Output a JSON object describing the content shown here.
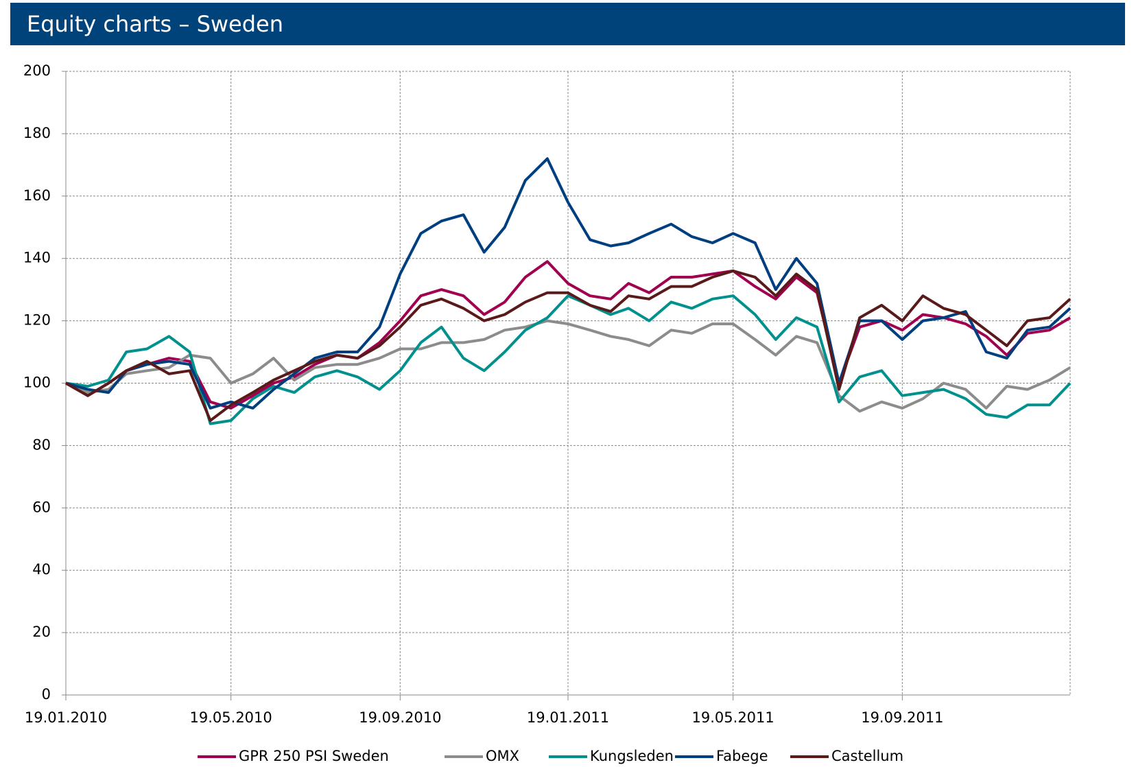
{
  "chart_data": {
    "type": "line",
    "title": "Equity charts – Sweden",
    "x": [
      "2010-01-19",
      "2010-02-04",
      "2010-02-19",
      "2010-03-04",
      "2010-03-19",
      "2010-04-04",
      "2010-04-19",
      "2010-05-04",
      "2010-05-19",
      "2010-06-04",
      "2010-06-19",
      "2010-07-04",
      "2010-07-19",
      "2010-08-04",
      "2010-08-19",
      "2010-09-04",
      "2010-09-19",
      "2010-10-04",
      "2010-10-19",
      "2010-11-04",
      "2010-11-19",
      "2010-12-04",
      "2010-12-19",
      "2011-01-04",
      "2011-01-19",
      "2011-02-04",
      "2011-02-19",
      "2011-03-04",
      "2011-03-19",
      "2011-04-04",
      "2011-04-19",
      "2011-05-04",
      "2011-05-19",
      "2011-06-04",
      "2011-06-19",
      "2011-07-04",
      "2011-07-19",
      "2011-08-04",
      "2011-08-19",
      "2011-09-04",
      "2011-09-19",
      "2011-10-04",
      "2011-10-19",
      "2011-11-04",
      "2011-11-19",
      "2011-12-04",
      "2011-12-19",
      "2012-01-04",
      "2012-01-19"
    ],
    "series": [
      {
        "name": "GPR 250 PSI Sweden",
        "color": "#a0004f",
        "values": [
          100,
          96,
          100,
          104,
          106,
          108,
          107,
          94,
          92,
          96,
          100,
          102,
          106,
          109,
          108,
          113,
          120,
          128,
          130,
          128,
          122,
          126,
          134,
          139,
          132,
          128,
          127,
          132,
          129,
          134,
          134,
          135,
          136,
          131,
          127,
          134,
          129,
          100,
          118,
          120,
          117,
          122,
          121,
          119,
          115,
          109,
          116,
          117,
          121
        ]
      },
      {
        "name": "OMX",
        "color": "#8c8c8c",
        "values": [
          100,
          97,
          98,
          103,
          104,
          105,
          109,
          108,
          100,
          103,
          108,
          101,
          105,
          106,
          106,
          108,
          111,
          111,
          113,
          113,
          114,
          117,
          118,
          120,
          119,
          117,
          115,
          114,
          112,
          117,
          116,
          119,
          119,
          114,
          109,
          115,
          113,
          96,
          91,
          94,
          92,
          95,
          100,
          98,
          92,
          99,
          98,
          101,
          105
        ]
      },
      {
        "name": "Kungsleden",
        "color": "#00918e",
        "values": [
          100,
          99,
          101,
          110,
          111,
          115,
          110,
          87,
          88,
          95,
          99,
          97,
          102,
          104,
          102,
          98,
          104,
          113,
          118,
          108,
          104,
          110,
          117,
          121,
          128,
          125,
          122,
          124,
          120,
          126,
          124,
          127,
          128,
          122,
          114,
          121,
          118,
          94,
          102,
          104,
          96,
          97,
          98,
          95,
          90,
          89,
          93,
          93,
          100
        ]
      },
      {
        "name": "Fabege",
        "color": "#003f7f",
        "values": [
          100,
          98,
          97,
          104,
          106,
          107,
          106,
          92,
          94,
          92,
          98,
          103,
          108,
          110,
          110,
          118,
          135,
          148,
          152,
          154,
          142,
          150,
          165,
          172,
          158,
          146,
          144,
          145,
          148,
          151,
          147,
          145,
          148,
          145,
          130,
          140,
          132,
          100,
          120,
          120,
          114,
          120,
          121,
          123,
          110,
          108,
          117,
          118,
          124
        ]
      },
      {
        "name": "Castellum",
        "color": "#5a1a1a",
        "values": [
          100,
          96,
          100,
          104,
          107,
          103,
          104,
          88,
          93,
          97,
          101,
          104,
          107,
          109,
          108,
          112,
          118,
          125,
          127,
          124,
          120,
          122,
          126,
          129,
          129,
          125,
          123,
          128,
          127,
          131,
          131,
          134,
          136,
          134,
          128,
          135,
          130,
          98,
          121,
          125,
          120,
          128,
          124,
          122,
          117,
          112,
          120,
          121,
          127
        ]
      }
    ],
    "xlim": [
      "2010-01-19",
      "2012-01-19"
    ],
    "xticks": [
      {
        "value": "2010-01-19",
        "label": "19.01.2010"
      },
      {
        "value": "2010-05-19",
        "label": "19.05.2010"
      },
      {
        "value": "2010-09-19",
        "label": "19.09.2010"
      },
      {
        "value": "2011-01-19",
        "label": "19.01.2011"
      },
      {
        "value": "2011-05-19",
        "label": "19.05.2011"
      },
      {
        "value": "2011-09-19",
        "label": "19.09.2011"
      }
    ],
    "ylim": [
      0,
      200
    ],
    "yticks": [
      0,
      20,
      40,
      60,
      80,
      100,
      120,
      140,
      160,
      180,
      200
    ],
    "grid": true
  }
}
